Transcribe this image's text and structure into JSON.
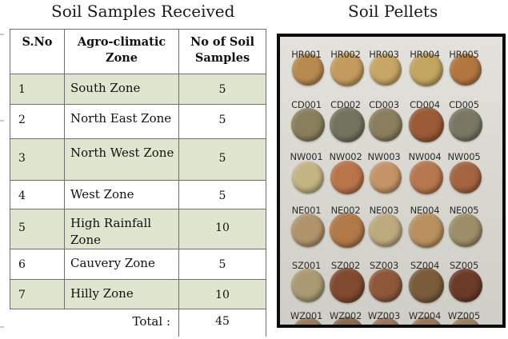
{
  "left_title": "Soil Samples Received",
  "right_title": "Soil Pellets",
  "table": {
    "headers": [
      "S.No",
      "Agro-climatic Zone",
      "No of Soil Samples"
    ],
    "rows": [
      {
        "sno": "1",
        "zone": "South Zone",
        "count": "5"
      },
      {
        "sno": "2",
        "zone": "North East Zone",
        "count": "5"
      },
      {
        "sno": "3",
        "zone": "North West Zone",
        "count": "5"
      },
      {
        "sno": "4",
        "zone": "West Zone",
        "count": "5"
      },
      {
        "sno": "5",
        "zone": "High Rainfall Zone",
        "count": "10"
      },
      {
        "sno": "6",
        "zone": "Cauvery Zone",
        "count": "5"
      },
      {
        "sno": "7",
        "zone": "Hilly Zone",
        "count": "10"
      }
    ],
    "total_label": "Total :",
    "total_value": "45"
  },
  "pellet_rows": [
    {
      "labels": [
        "HR001",
        "HR002",
        "HR003",
        "HR004",
        "HR005"
      ],
      "colors": [
        "#b98a4f",
        "#c49a5e",
        "#c7a565",
        "#c2a560",
        "#b2773f"
      ]
    },
    {
      "labels": [
        "CD001",
        "CD002",
        "CD003",
        "CD004",
        "CD005"
      ],
      "colors": [
        "#8a7f5c",
        "#74735e",
        "#8a7e5e",
        "#9a5a36",
        "#7a7762"
      ]
    },
    {
      "labels": [
        "NW001",
        "NW002",
        "NW003",
        "NW004",
        "NW005"
      ],
      "colors": [
        "#c4b483",
        "#b9744a",
        "#c49465",
        "#b7774f",
        "#a46440"
      ]
    },
    {
      "labels": [
        "NE001",
        "NE002",
        "NE003",
        "NE004",
        "NE005"
      ],
      "colors": [
        "#b0946a",
        "#b17848",
        "#bcaa7c",
        "#b9915f",
        "#9e8e68"
      ]
    },
    {
      "labels": [
        "SZ001",
        "SZ002",
        "SZ003",
        "SZ004",
        "SZ005"
      ],
      "colors": [
        "#a99a72",
        "#7f4a2e",
        "#8e573a",
        "#7a5b3a",
        "#6b3b28"
      ]
    },
    {
      "labels": [
        "WZ001",
        "WZ002",
        "WZ003",
        "WZ004",
        "WZ005"
      ],
      "colors": [
        "#9a7c56",
        "#8b6a4a",
        "#9a7454",
        "#9a7854",
        "#9c7e5c"
      ]
    }
  ]
}
